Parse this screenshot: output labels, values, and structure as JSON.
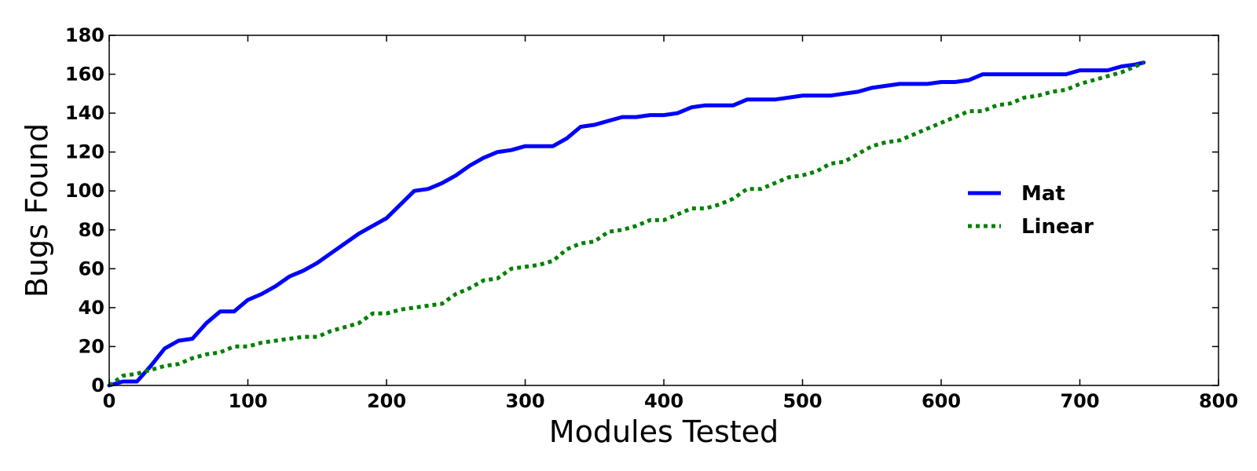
{
  "chart_data": {
    "type": "line",
    "title": "",
    "xlabel": "Modules Tested",
    "ylabel": "Bugs Found",
    "xlim": [
      0,
      800
    ],
    "ylim": [
      0,
      180
    ],
    "xticks": [
      "0",
      "100",
      "200",
      "300",
      "400",
      "500",
      "600",
      "700",
      "800"
    ],
    "yticks": [
      "0",
      "20",
      "40",
      "60",
      "80",
      "100",
      "120",
      "140",
      "160",
      "180"
    ],
    "grid": false,
    "legend_position": "center-right",
    "series": [
      {
        "name": "Mat",
        "color": "#0000ff",
        "line_style": "solid",
        "x": [
          0,
          10,
          20,
          30,
          40,
          50,
          60,
          70,
          80,
          90,
          100,
          110,
          120,
          130,
          140,
          150,
          160,
          170,
          180,
          190,
          200,
          210,
          220,
          230,
          240,
          250,
          260,
          270,
          280,
          290,
          300,
          310,
          320,
          330,
          340,
          350,
          360,
          370,
          380,
          390,
          400,
          410,
          420,
          430,
          440,
          450,
          460,
          470,
          480,
          490,
          500,
          510,
          520,
          530,
          540,
          550,
          560,
          570,
          580,
          590,
          600,
          610,
          620,
          630,
          640,
          650,
          660,
          670,
          680,
          690,
          700,
          710,
          720,
          730,
          740,
          746
        ],
        "values": [
          0,
          2,
          2,
          10,
          19,
          23,
          24,
          32,
          38,
          38,
          44,
          47,
          51,
          56,
          59,
          63,
          68,
          73,
          78,
          82,
          86,
          93,
          100,
          101,
          104,
          108,
          113,
          117,
          120,
          121,
          123,
          123,
          123,
          127,
          133,
          134,
          136,
          138,
          138,
          139,
          139,
          140,
          143,
          144,
          144,
          144,
          147,
          147,
          147,
          148,
          149,
          149,
          149,
          150,
          151,
          153,
          154,
          155,
          155,
          155,
          156,
          156,
          157,
          160,
          160,
          160,
          160,
          160,
          160,
          160,
          162,
          162,
          162,
          164,
          165,
          166
        ]
      },
      {
        "name": "Linear",
        "color": "#008000",
        "line_style": "dotted",
        "x": [
          0,
          10,
          20,
          30,
          40,
          50,
          60,
          70,
          80,
          90,
          100,
          110,
          120,
          130,
          140,
          150,
          160,
          170,
          180,
          190,
          200,
          210,
          220,
          230,
          240,
          250,
          260,
          270,
          280,
          290,
          300,
          310,
          320,
          330,
          340,
          350,
          360,
          370,
          380,
          390,
          400,
          410,
          420,
          430,
          440,
          450,
          460,
          470,
          480,
          490,
          500,
          510,
          520,
          530,
          540,
          550,
          560,
          570,
          580,
          590,
          600,
          610,
          620,
          630,
          640,
          650,
          660,
          670,
          680,
          690,
          700,
          710,
          720,
          730,
          740,
          746
        ],
        "values": [
          0,
          5,
          6,
          8,
          10,
          11,
          14,
          16,
          17,
          20,
          20,
          22,
          23,
          24,
          25,
          25,
          28,
          30,
          32,
          37,
          37,
          39,
          40,
          41,
          42,
          47,
          50,
          54,
          55,
          60,
          61,
          62,
          64,
          70,
          73,
          74,
          79,
          80,
          82,
          85,
          85,
          88,
          91,
          91,
          93,
          96,
          101,
          101,
          104,
          107,
          108,
          110,
          114,
          115,
          119,
          123,
          125,
          126,
          129,
          132,
          135,
          138,
          141,
          141,
          144,
          145,
          148,
          149,
          151,
          152,
          155,
          157,
          159,
          161,
          164,
          166
        ]
      }
    ]
  }
}
